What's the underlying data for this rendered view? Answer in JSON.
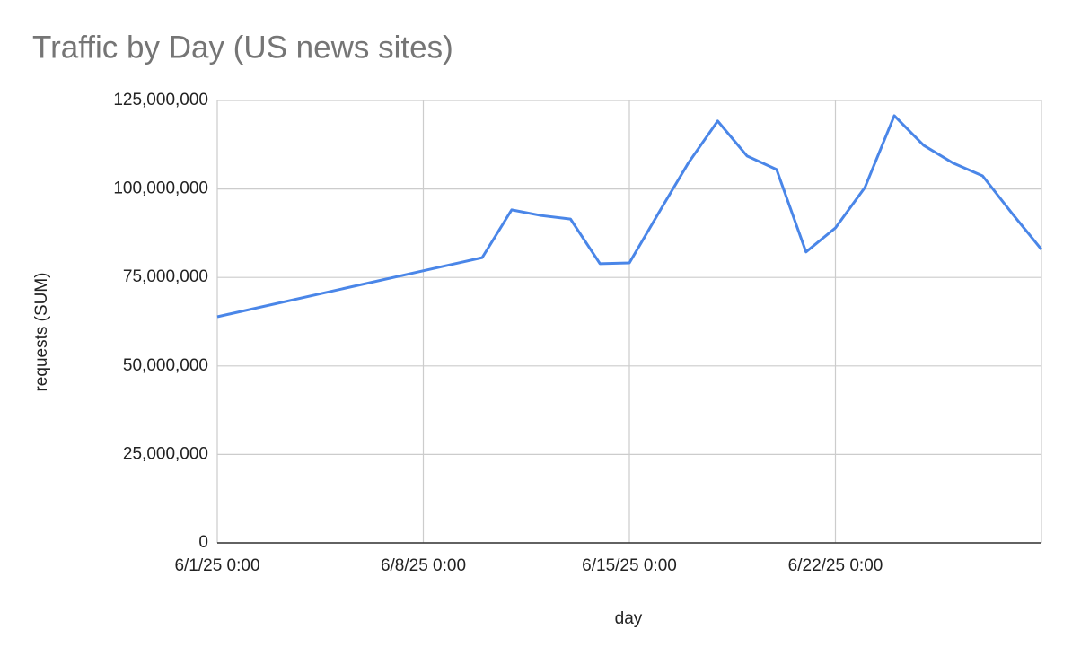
{
  "chart_data": {
    "type": "line",
    "title": "Traffic by Day (US news sites)",
    "x_label": "day",
    "y_label": "requests (SUM)",
    "x": [
      "2025-06-01",
      "2025-06-10",
      "2025-06-11",
      "2025-06-12",
      "2025-06-13",
      "2025-06-14",
      "2025-06-15",
      "2025-06-16",
      "2025-06-17",
      "2025-06-18",
      "2025-06-19",
      "2025-06-20",
      "2025-06-21",
      "2025-06-22",
      "2025-06-23",
      "2025-06-24",
      "2025-06-25",
      "2025-06-26",
      "2025-06-27",
      "2025-06-28",
      "2025-06-29"
    ],
    "series": [
      {
        "name": "requests (SUM)",
        "color": "#4a86e8",
        "values": [
          63900000,
          80600000,
          94100000,
          92500000,
          91500000,
          78900000,
          79100000,
          93300000,
          107300000,
          119200000,
          109300000,
          105500000,
          82200000,
          89000000,
          100400000,
          120700000,
          112300000,
          107300000,
          103700000,
          93100000,
          82900000
        ]
      }
    ],
    "xlim": [
      "2025-06-01",
      "2025-06-29"
    ],
    "xticks": [
      {
        "value": "2025-06-01",
        "label": "6/1/25 0:00"
      },
      {
        "value": "2025-06-08",
        "label": "6/8/25 0:00"
      },
      {
        "value": "2025-06-15",
        "label": "6/15/25 0:00"
      },
      {
        "value": "2025-06-22",
        "label": "6/22/25 0:00"
      }
    ],
    "ylim": [
      0,
      125000000
    ],
    "yticks": [
      0,
      {
        "value": 25000000,
        "label": "25,000,000"
      },
      {
        "value": 50000000,
        "label": "50,000,000"
      },
      {
        "value": 75000000,
        "label": "75,000,000"
      },
      {
        "value": 100000000,
        "label": "100,000,000"
      },
      {
        "value": 125000000,
        "label": "125,000,000"
      }
    ],
    "grid": true
  }
}
